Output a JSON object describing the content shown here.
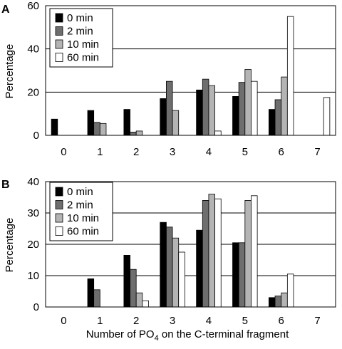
{
  "chart_data": [
    {
      "type": "bar",
      "panel_label": "A",
      "title": "",
      "xlabel": "",
      "ylabel": "Percentage",
      "ylim": [
        0,
        60
      ],
      "yticks": [
        0,
        20,
        40,
        60
      ],
      "grid": "horizontal",
      "legend_position": "top-left",
      "categories": [
        "0",
        "1",
        "2",
        "3",
        "4",
        "5",
        "6",
        "7"
      ],
      "series": [
        {
          "name": "0 min",
          "color": "#000000",
          "values": [
            7.5,
            11.5,
            12,
            17,
            21,
            18,
            12,
            0
          ]
        },
        {
          "name": "2 min",
          "color": "#6e6e6e",
          "values": [
            0,
            6,
            1.5,
            25,
            26,
            24.5,
            16.5,
            0
          ]
        },
        {
          "name": "10 min",
          "color": "#b4b4b4",
          "values": [
            0,
            5.5,
            2,
            11.5,
            23,
            30.5,
            27,
            0
          ]
        },
        {
          "name": "60 min",
          "color": "#ffffff",
          "values": [
            0,
            0,
            0,
            0,
            2,
            25,
            55,
            17.5
          ]
        }
      ]
    },
    {
      "type": "bar",
      "panel_label": "B",
      "title": "",
      "xlabel_prefix": "Number of PO",
      "xlabel_sub": "4",
      "xlabel_suffix": " on the C-terminal fragment",
      "ylabel": "Percentage",
      "ylim": [
        0,
        40
      ],
      "yticks": [
        0,
        10,
        20,
        30,
        40
      ],
      "grid": "horizontal",
      "legend_position": "top-left",
      "categories": [
        "0",
        "1",
        "2",
        "3",
        "4",
        "5",
        "6",
        "7"
      ],
      "series": [
        {
          "name": "0 min",
          "color": "#000000",
          "values": [
            0,
            9,
            16.5,
            27,
            24.5,
            20.5,
            3,
            0
          ]
        },
        {
          "name": "2 min",
          "color": "#6e6e6e",
          "values": [
            0,
            5.5,
            12,
            25.5,
            34,
            20.5,
            3.5,
            0
          ]
        },
        {
          "name": "10 min",
          "color": "#b4b4b4",
          "values": [
            0,
            0,
            4.5,
            22,
            36,
            34,
            4.5,
            0
          ]
        },
        {
          "name": "60 min",
          "color": "#ffffff",
          "values": [
            0,
            0,
            2,
            17.5,
            34.5,
            35.5,
            10.5,
            0
          ]
        }
      ]
    }
  ]
}
